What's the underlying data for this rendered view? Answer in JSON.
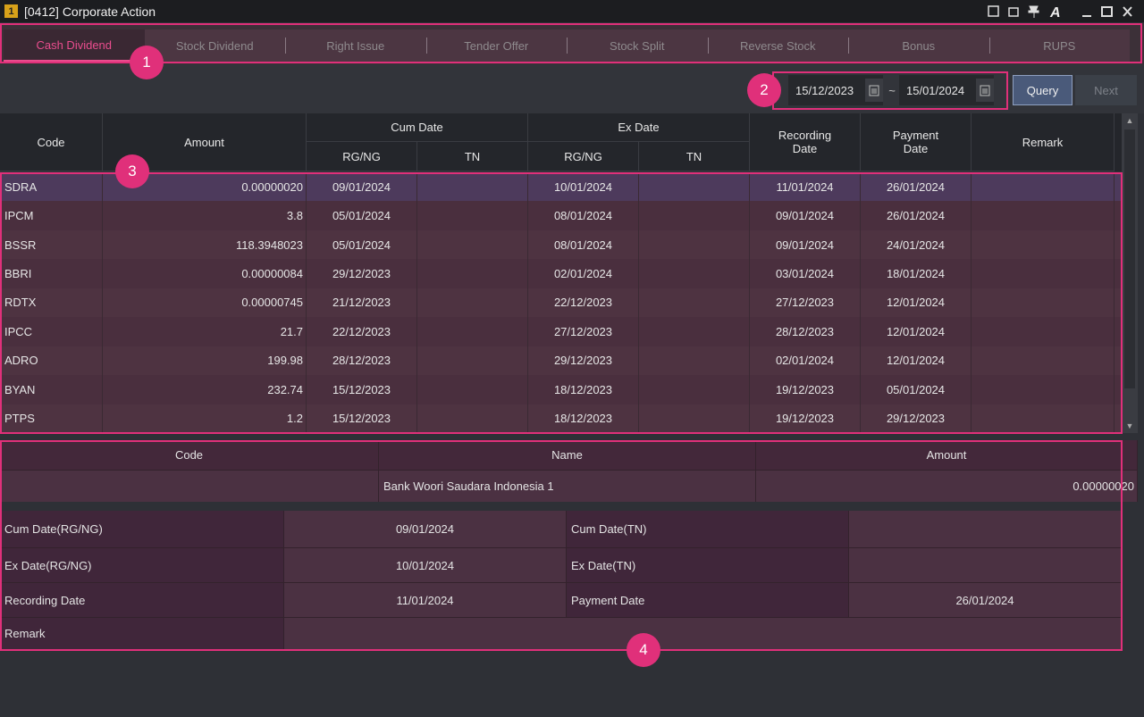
{
  "window": {
    "icon": "1",
    "title": "[0412] Corporate Action"
  },
  "tabs": [
    "Cash Dividend",
    "Stock Dividend",
    "Right Issue",
    "Tender Offer",
    "Stock Split",
    "Reverse Stock",
    "Bonus",
    "RUPS"
  ],
  "query": {
    "date_from": "15/12/2023",
    "separator": "~",
    "date_to": "15/01/2024",
    "buttons": [
      "Query",
      "Next"
    ]
  },
  "table": {
    "header": {
      "top": [
        "Code",
        "Amount",
        "Cum Date",
        "Ex Date",
        "Recording Date",
        "Payment Date",
        "Remark"
      ],
      "sub": [
        "RG/NG",
        "TN",
        "RG/NG",
        "TN"
      ]
    },
    "rows": [
      [
        "SDRA",
        "0.00000020",
        "09/01/2024",
        null,
        "10/01/2024",
        null,
        "11/01/2024",
        "26/01/2024",
        null
      ],
      [
        "IPCM",
        "3.8",
        "05/01/2024",
        null,
        "08/01/2024",
        null,
        "09/01/2024",
        "26/01/2024",
        null
      ],
      [
        "BSSR",
        "118.3948023",
        "05/01/2024",
        null,
        "08/01/2024",
        null,
        "09/01/2024",
        "24/01/2024",
        null
      ],
      [
        "BBRI",
        "0.00000084",
        "29/12/2023",
        null,
        "02/01/2024",
        null,
        "03/01/2024",
        "18/01/2024",
        null
      ],
      [
        "RDTX",
        "0.00000745",
        "21/12/2023",
        null,
        "22/12/2023",
        null,
        "27/12/2023",
        "12/01/2024",
        null
      ],
      [
        "IPCC",
        "21.7",
        "22/12/2023",
        null,
        "27/12/2023",
        null,
        "28/12/2023",
        "12/01/2024",
        null
      ],
      [
        "ADRO",
        "199.98",
        "28/12/2023",
        null,
        "29/12/2023",
        null,
        "02/01/2024",
        "12/01/2024",
        null
      ],
      [
        "BYAN",
        "232.74",
        "15/12/2023",
        null,
        "18/12/2023",
        null,
        "19/12/2023",
        "05/01/2024",
        null
      ],
      [
        "PTPS",
        "1.2",
        "15/12/2023",
        null,
        "18/12/2023",
        null,
        "19/12/2023",
        "29/12/2023",
        null
      ]
    ]
  },
  "detail": {
    "header": [
      "Code",
      "Name",
      "Amount"
    ],
    "values": [
      null,
      "Bank Woori Saudara Indonesia 1",
      "0.00000020"
    ],
    "fields": [
      [
        "Cum Date(RG/NG)",
        "09/01/2024",
        "Cum Date(TN)",
        null
      ],
      [
        "Ex Date(RG/NG)",
        "10/01/2024",
        "Ex Date(TN)",
        null
      ],
      [
        "Recording Date",
        "11/01/2024",
        "Payment Date",
        "26/01/2024"
      ],
      [
        "Remark",
        null
      ]
    ]
  },
  "callouts": [
    "1",
    "2",
    "3",
    "4"
  ]
}
